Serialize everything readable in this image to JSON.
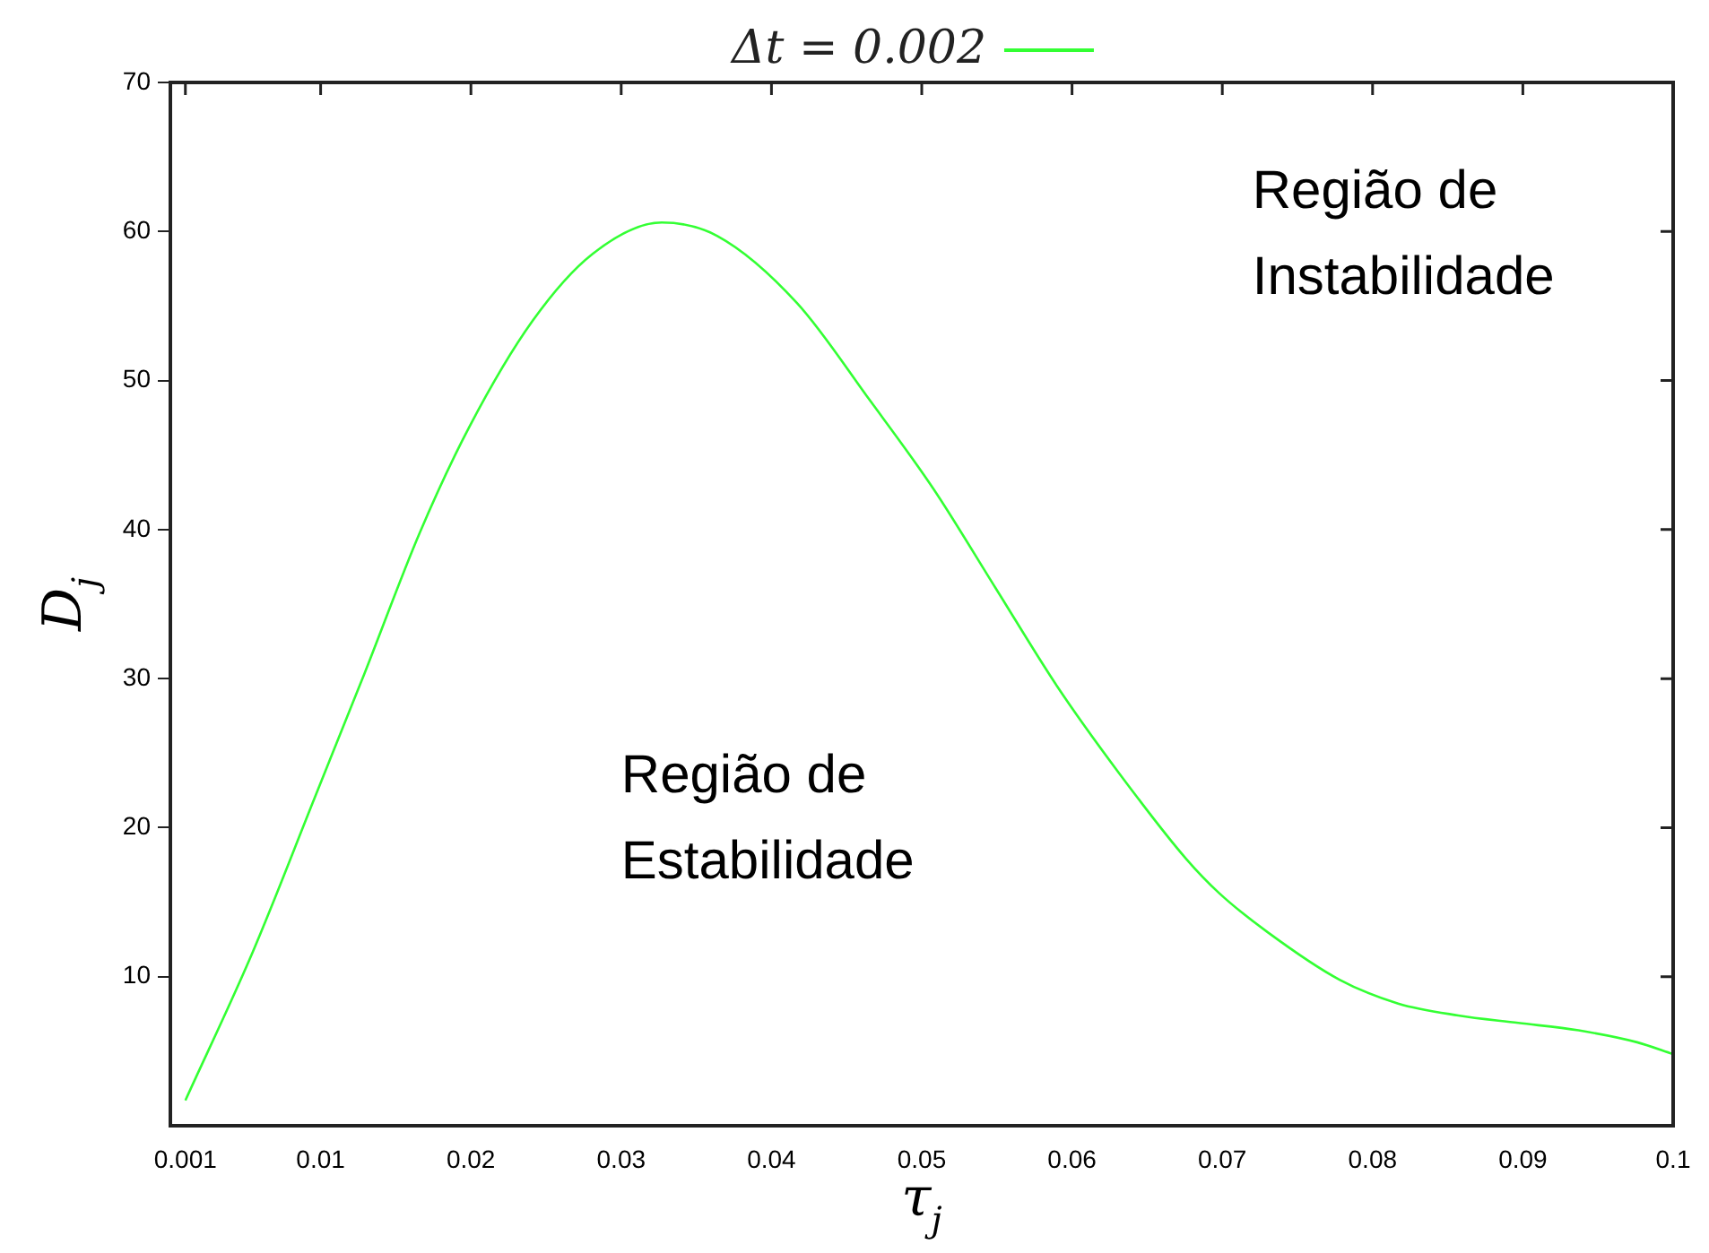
{
  "chart_data": {
    "type": "line",
    "xlabel": "τ$_{j}$",
    "ylabel": "D$_{j}$",
    "x": [
      0.001,
      0.0055,
      0.0096,
      0.0129,
      0.0166,
      0.0199,
      0.0241,
      0.0281,
      0.0327,
      0.0364,
      0.0417,
      0.0466,
      0.0508,
      0.0549,
      0.059,
      0.0631,
      0.0676,
      0.0698,
      0.073,
      0.0778,
      0.0817,
      0.0857,
      0.0897,
      0.0937,
      0.0976,
      0.1
    ],
    "series": [
      {
        "name": "Δt = 0.002",
        "color": "#33ff33",
        "values": [
          1.7,
          11.7,
          22,
          30.3,
          39.8,
          46.9,
          54,
          58.5,
          60.6,
          59.7,
          55.2,
          48.6,
          42.7,
          36.1,
          29.5,
          23.7,
          17.9,
          15.6,
          13,
          9.8,
          8.2,
          7.4,
          6.9,
          6.4,
          5.6,
          4.8
        ]
      }
    ],
    "xlim": [
      0,
      0.1
    ],
    "xticks": [
      0.001,
      0.01,
      0.02,
      0.03,
      0.04,
      0.05,
      0.06,
      0.07,
      0.08,
      0.09,
      0.1
    ],
    "ylim": [
      0,
      70
    ],
    "yticks": [
      10,
      20,
      30,
      40,
      50,
      60,
      70
    ],
    "annotations": [
      "Região de\nEstabilidade",
      "Região de\nInstabilidade"
    ],
    "legend": "top",
    "grid": false,
    "marker": "none",
    "line_style": "solid"
  }
}
